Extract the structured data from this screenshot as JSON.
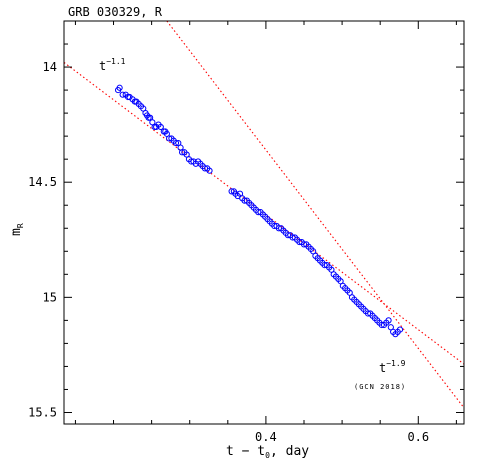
{
  "chart_data": {
    "type": "scatter",
    "title": "GRB 030329, R",
    "xlabel": "t − t",
    "xlabel_sub": "0",
    "xlabel_suffix": ", day",
    "ylabel": "m",
    "ylabel_sub": "R",
    "xlim": [
      0.135,
      0.66
    ],
    "ylim": [
      15.55,
      13.8
    ],
    "y_inverted": true,
    "xticks": [
      0.4,
      0.6
    ],
    "xtick_labels": [
      "0.4",
      "0.6"
    ],
    "yticks": [
      14,
      14.5,
      15,
      15.5
    ],
    "ytick_labels": [
      "14",
      "14.5",
      "15",
      "15.5"
    ],
    "grid": false,
    "colors": {
      "points": "#0000ff",
      "fit_lines": "#ff0000",
      "axes": "#000000"
    },
    "fit_lines": [
      {
        "label_base": "t",
        "label_exp": "−1.1",
        "x": [
          0.135,
          0.66
        ],
        "y": [
          13.98,
          15.29
        ]
      },
      {
        "label_base": "t",
        "label_exp": "−1.9",
        "x": [
          0.27,
          0.66
        ],
        "y": [
          13.8,
          15.48
        ]
      }
    ],
    "annotation": "(GCN 2018)",
    "series": [
      {
        "points": [
          [
            0.206,
            14.1
          ],
          [
            0.208,
            14.09
          ],
          [
            0.212,
            14.12
          ],
          [
            0.216,
            14.12
          ],
          [
            0.219,
            14.13
          ],
          [
            0.221,
            14.13
          ],
          [
            0.225,
            14.14
          ],
          [
            0.228,
            14.15
          ],
          [
            0.23,
            14.15
          ],
          [
            0.233,
            14.16
          ],
          [
            0.236,
            14.17
          ],
          [
            0.239,
            14.18
          ],
          [
            0.242,
            14.2
          ],
          [
            0.244,
            14.21
          ],
          [
            0.246,
            14.22
          ],
          [
            0.248,
            14.22
          ],
          [
            0.251,
            14.24
          ],
          [
            0.254,
            14.26
          ],
          [
            0.256,
            14.26
          ],
          [
            0.259,
            14.25
          ],
          [
            0.262,
            14.26
          ],
          [
            0.266,
            14.28
          ],
          [
            0.268,
            14.28
          ],
          [
            0.27,
            14.29
          ],
          [
            0.273,
            14.31
          ],
          [
            0.276,
            14.31
          ],
          [
            0.279,
            14.32
          ],
          [
            0.282,
            14.33
          ],
          [
            0.285,
            14.33
          ],
          [
            0.288,
            14.35
          ],
          [
            0.29,
            14.37
          ],
          [
            0.293,
            14.37
          ],
          [
            0.296,
            14.38
          ],
          [
            0.299,
            14.4
          ],
          [
            0.302,
            14.41
          ],
          [
            0.305,
            14.41
          ],
          [
            0.308,
            14.42
          ],
          [
            0.311,
            14.41
          ],
          [
            0.314,
            14.42
          ],
          [
            0.317,
            14.43
          ],
          [
            0.32,
            14.44
          ],
          [
            0.323,
            14.44
          ],
          [
            0.326,
            14.45
          ],
          [
            0.355,
            14.54
          ],
          [
            0.358,
            14.54
          ],
          [
            0.36,
            14.55
          ],
          [
            0.363,
            14.56
          ],
          [
            0.366,
            14.55
          ],
          [
            0.369,
            14.57
          ],
          [
            0.372,
            14.58
          ],
          [
            0.375,
            14.58
          ],
          [
            0.378,
            14.59
          ],
          [
            0.381,
            14.6
          ],
          [
            0.384,
            14.61
          ],
          [
            0.387,
            14.62
          ],
          [
            0.39,
            14.63
          ],
          [
            0.393,
            14.63
          ],
          [
            0.396,
            14.64
          ],
          [
            0.399,
            14.65
          ],
          [
            0.402,
            14.66
          ],
          [
            0.405,
            14.67
          ],
          [
            0.408,
            14.68
          ],
          [
            0.411,
            14.69
          ],
          [
            0.414,
            14.69
          ],
          [
            0.417,
            14.7
          ],
          [
            0.42,
            14.7
          ],
          [
            0.423,
            14.71
          ],
          [
            0.426,
            14.72
          ],
          [
            0.429,
            14.73
          ],
          [
            0.432,
            14.73
          ],
          [
            0.435,
            14.74
          ],
          [
            0.438,
            14.74
          ],
          [
            0.441,
            14.75
          ],
          [
            0.444,
            14.76
          ],
          [
            0.447,
            14.76
          ],
          [
            0.45,
            14.77
          ],
          [
            0.453,
            14.77
          ],
          [
            0.456,
            14.78
          ],
          [
            0.459,
            14.79
          ],
          [
            0.462,
            14.8
          ],
          [
            0.465,
            14.82
          ],
          [
            0.468,
            14.83
          ],
          [
            0.471,
            14.84
          ],
          [
            0.474,
            14.85
          ],
          [
            0.477,
            14.86
          ],
          [
            0.48,
            14.86
          ],
          [
            0.483,
            14.87
          ],
          [
            0.486,
            14.88
          ],
          [
            0.489,
            14.9
          ],
          [
            0.492,
            14.91
          ],
          [
            0.495,
            14.92
          ],
          [
            0.498,
            14.93
          ],
          [
            0.501,
            14.95
          ],
          [
            0.504,
            14.96
          ],
          [
            0.507,
            14.97
          ],
          [
            0.51,
            14.98
          ],
          [
            0.513,
            15.0
          ],
          [
            0.516,
            15.01
          ],
          [
            0.519,
            15.02
          ],
          [
            0.522,
            15.03
          ],
          [
            0.525,
            15.04
          ],
          [
            0.528,
            15.05
          ],
          [
            0.531,
            15.06
          ],
          [
            0.534,
            15.07
          ],
          [
            0.537,
            15.07
          ],
          [
            0.54,
            15.08
          ],
          [
            0.543,
            15.09
          ],
          [
            0.546,
            15.1
          ],
          [
            0.549,
            15.11
          ],
          [
            0.552,
            15.12
          ],
          [
            0.555,
            15.12
          ],
          [
            0.558,
            15.11
          ],
          [
            0.561,
            15.1
          ],
          [
            0.564,
            15.13
          ],
          [
            0.567,
            15.15
          ],
          [
            0.57,
            15.16
          ],
          [
            0.573,
            15.15
          ],
          [
            0.576,
            15.14
          ]
        ]
      }
    ]
  }
}
